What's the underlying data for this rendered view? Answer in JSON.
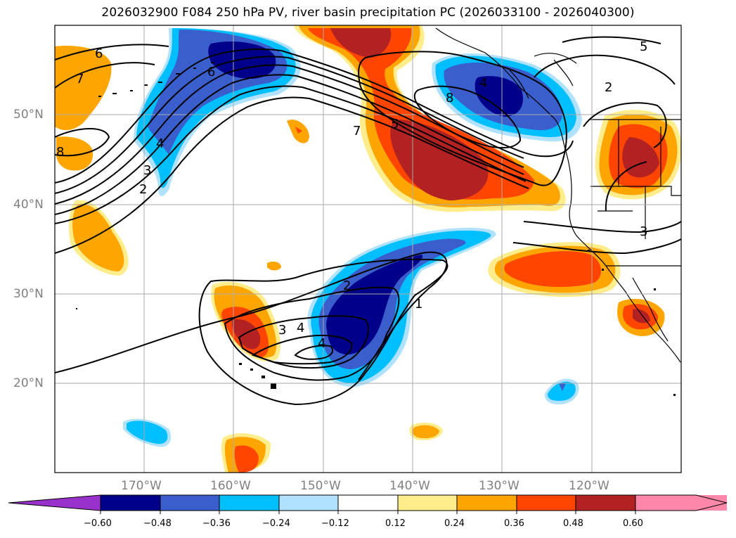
{
  "title": "2026032900 F084 250 hPa PV, river basin precipitation PC (2026033100 - 2026040300)",
  "map": {
    "lat_labels": [
      "50°N",
      "40°N",
      "30°N",
      "20°N"
    ],
    "lon_labels": [
      "170°W",
      "160°W",
      "150°W",
      "140°W",
      "130°W",
      "120°W"
    ],
    "contour_labels": [
      "6",
      "7",
      "8",
      "4",
      "3",
      "2",
      "7",
      "5",
      "6",
      "8",
      "4",
      "2",
      "5",
      "3",
      "2",
      "4",
      "3",
      "4",
      "1"
    ]
  },
  "colorbar": {
    "ticks": [
      "−0.60",
      "−0.48",
      "−0.36",
      "−0.24",
      "−0.12",
      "0.12",
      "0.24",
      "0.36",
      "0.48",
      "0.60"
    ],
    "colors": [
      "#9932cc",
      "#00008b",
      "#3a5fcd",
      "#00bfff",
      "#b0e2ff",
      "#ffffff",
      "#ffec8b",
      "#ffa500",
      "#ff4500",
      "#b22222",
      "#ff88aa"
    ]
  }
}
